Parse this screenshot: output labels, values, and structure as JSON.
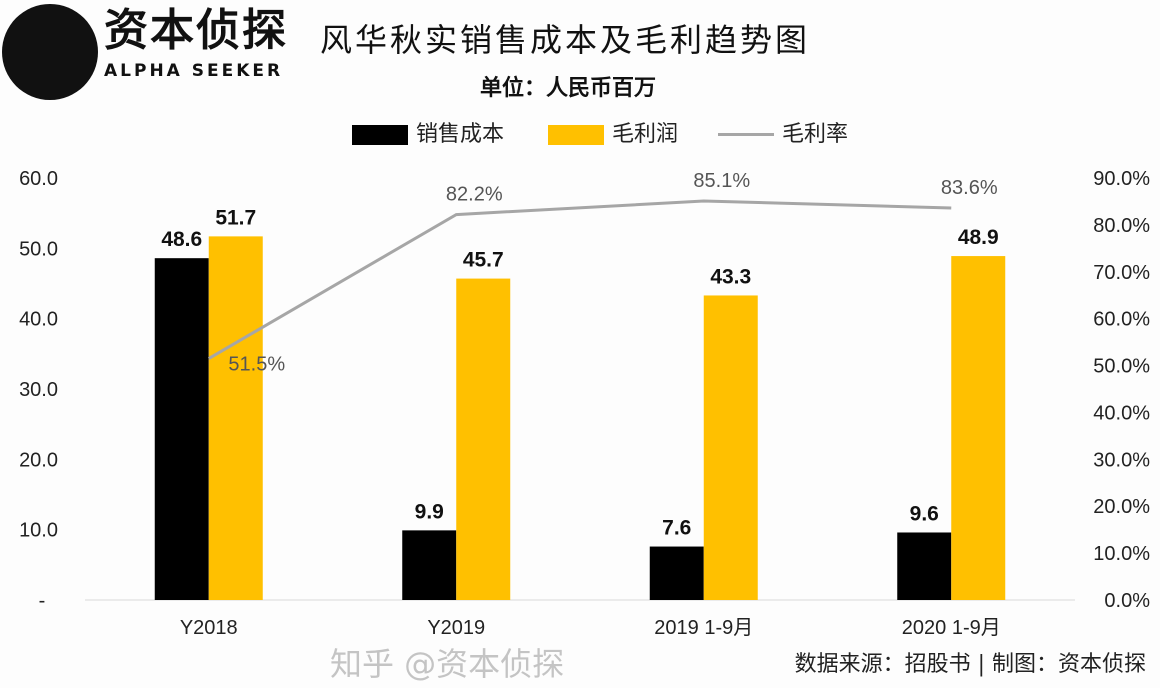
{
  "header": {
    "brand_cn": "资本侦探",
    "brand_en": "ALPHA SEEKER",
    "watermark": "知乎 @资本侦探",
    "source": "数据来源：招股书 | 制图：资本侦探"
  },
  "chart_data": {
    "type": "bar+line",
    "title": "风华秋实销售成本及毛利趋势图",
    "subtitle": "单位：人民币百万",
    "categories": [
      "Y2018",
      "Y2019",
      "2019 1-9月",
      "2020 1-9月"
    ],
    "series": [
      {
        "name": "销售成本",
        "type": "bar",
        "axis": "left",
        "color": "#000000",
        "values": [
          48.6,
          9.9,
          7.6,
          9.6
        ],
        "labels": [
          "48.6",
          "9.9",
          "7.6",
          "9.6"
        ]
      },
      {
        "name": "毛利润",
        "type": "bar",
        "axis": "left",
        "color": "#FFC000",
        "values": [
          51.7,
          45.7,
          43.3,
          48.9
        ],
        "labels": [
          "51.7",
          "45.7",
          "43.3",
          "48.9"
        ]
      },
      {
        "name": "毛利率",
        "type": "line",
        "axis": "right",
        "color": "#A6A6A6",
        "values": [
          51.5,
          82.2,
          85.1,
          83.6
        ],
        "labels": [
          "51.5%",
          "82.2%",
          "85.1%",
          "83.6%"
        ]
      }
    ],
    "left_axis": {
      "ylim": [
        0,
        60
      ],
      "ticks": [
        "-",
        "10.0",
        "20.0",
        "30.0",
        "40.0",
        "50.0",
        "60.0"
      ]
    },
    "right_axis": {
      "ylim": [
        0,
        90
      ],
      "ticks": [
        "0.0%",
        "10.0%",
        "20.0%",
        "30.0%",
        "40.0%",
        "50.0%",
        "60.0%",
        "70.0%",
        "80.0%",
        "90.0%"
      ]
    },
    "legend_position": "top",
    "grid": false
  }
}
